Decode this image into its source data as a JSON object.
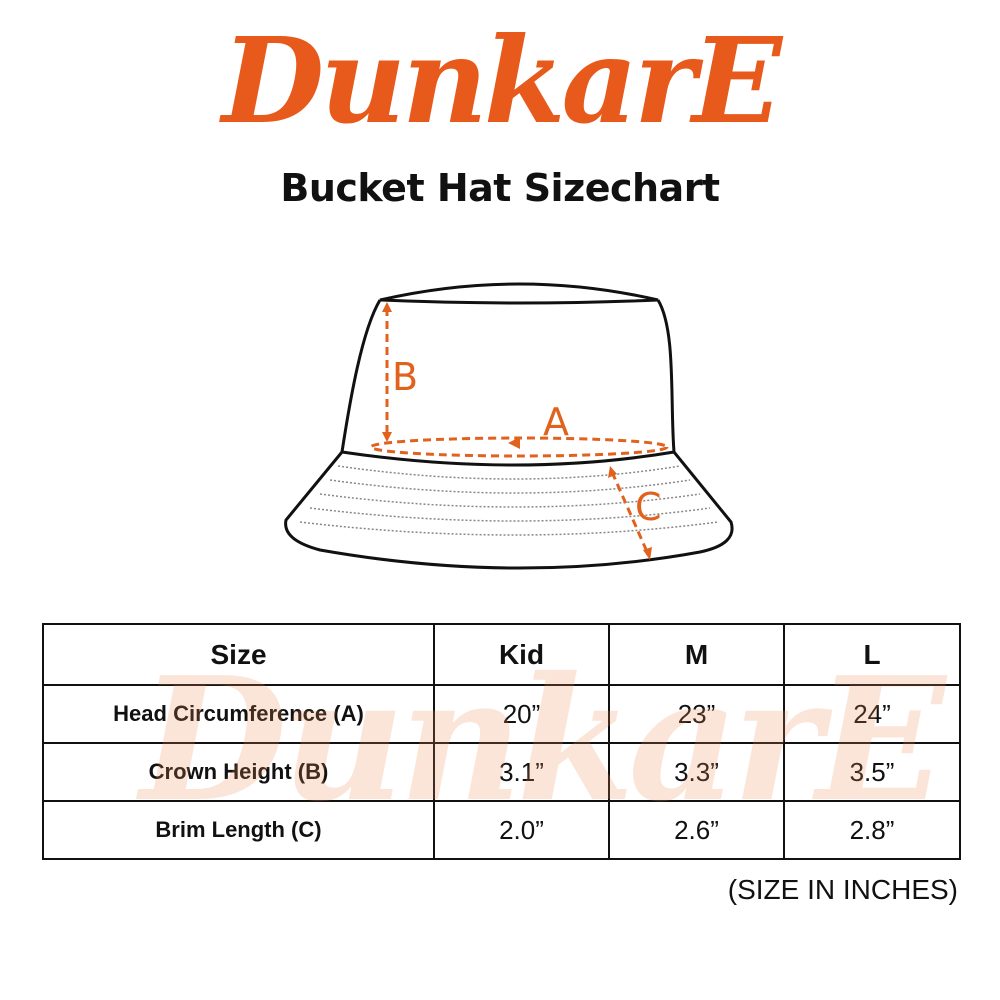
{
  "brand": {
    "logo_text": "DunkarE",
    "color": "#E85A1B"
  },
  "title": "Bucket Hat Sizechart",
  "diagram": {
    "labels": {
      "a": "A",
      "b": "B",
      "c": "C"
    },
    "accent_color": "#E0621E"
  },
  "table": {
    "headers": [
      "Size",
      "Kid",
      "M",
      "L"
    ],
    "rows": [
      {
        "label": "Head Circumference (A)",
        "values": [
          "20”",
          "23”",
          "24”"
        ]
      },
      {
        "label": "Crown Height (B)",
        "values": [
          "3.1”",
          "3.3”",
          "3.5”"
        ]
      },
      {
        "label": "Brim Length (C)",
        "values": [
          "2.0”",
          "2.6”",
          "2.8”"
        ]
      }
    ]
  },
  "note": "(SIZE IN INCHES)"
}
